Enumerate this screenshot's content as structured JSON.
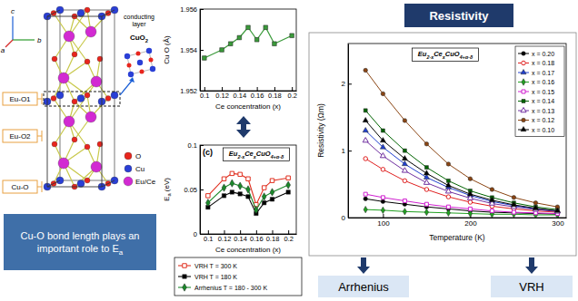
{
  "chart_data": [
    {
      "type": "line",
      "x_label": "Ce concentration (x)",
      "y_label": "Cu O (Å)",
      "x": [
        0.1,
        0.12,
        0.13,
        0.14,
        0.15,
        0.16,
        0.17,
        0.18,
        0.2
      ],
      "values": [
        1.9536,
        1.954,
        1.9543,
        1.9546,
        1.9551,
        1.9545,
        1.9551,
        1.9543,
        1.9547
      ],
      "errors": [
        0.0001,
        0.0001,
        0.0001,
        0.0001,
        0.0001,
        0.0001,
        0.0001,
        0.0001,
        0.0001
      ],
      "color": "#3a9a3a",
      "marker": "square",
      "xlim": [
        0.095,
        0.205
      ],
      "ylim": [
        1.952,
        1.956
      ],
      "xticks": [
        0.1,
        0.12,
        0.14,
        0.16,
        0.18,
        0.2
      ],
      "yticks": [
        1.952,
        1.954,
        1.956
      ]
    },
    {
      "type": "line",
      "panel_label": "(c)",
      "title": "Eu2-xCexCuO4+α-δ",
      "x_label": "Ce concentration (x)",
      "y_label": "Ea (eV)",
      "x": [
        0.1,
        0.12,
        0.13,
        0.14,
        0.15,
        0.16,
        0.17,
        0.18,
        0.2
      ],
      "series": [
        {
          "name": "VRH T = 300 K",
          "color": "#e03020",
          "marker": "open-square",
          "values": [
            0.043,
            0.062,
            0.068,
            0.067,
            0.062,
            0.033,
            0.052,
            0.06,
            0.063
          ]
        },
        {
          "name": "VRH T = 180 K",
          "color": "#000000",
          "marker": "square",
          "values": [
            0.03,
            0.043,
            0.047,
            0.045,
            0.042,
            0.023,
            0.035,
            0.039,
            0.047
          ]
        },
        {
          "name": "Arrhenius T = 180 - 300 K",
          "color": "#1a8a2a",
          "marker": "diamond",
          "values": [
            0.035,
            0.052,
            0.057,
            0.054,
            0.05,
            0.027,
            0.042,
            0.047,
            0.055
          ]
        }
      ],
      "legend": "bottom",
      "xlim": [
        0.09,
        0.21
      ],
      "ylim": [
        0,
        0.1
      ],
      "xticks": [
        0.1,
        0.12,
        0.14,
        0.16,
        0.18,
        0.2
      ],
      "yticks": [
        0,
        0.05,
        0.1
      ]
    },
    {
      "type": "line",
      "title": "Eu2-xCexCuO4+α-δ",
      "x_label": "Temperature (K)",
      "y_label": "Resistivity (Ωm)",
      "x": [
        80,
        100,
        125,
        150,
        175,
        200,
        225,
        250,
        275,
        300
      ],
      "series": [
        {
          "name": "x = 0.20",
          "color": "#000000",
          "marker": "circle",
          "values": [
            0.28,
            0.24,
            0.2,
            0.16,
            0.13,
            0.1,
            0.08,
            0.07,
            0.06,
            0.05
          ]
        },
        {
          "name": "x = 0.18",
          "color": "#e02020",
          "marker": "open-circle",
          "values": [
            0.88,
            0.72,
            0.55,
            0.42,
            0.31,
            0.23,
            0.17,
            0.13,
            0.1,
            0.08
          ]
        },
        {
          "name": "x = 0.17",
          "color": "#2040d0",
          "marker": "triangle",
          "values": [
            1.3,
            1.05,
            0.8,
            0.6,
            0.45,
            0.33,
            0.24,
            0.18,
            0.13,
            0.1
          ]
        },
        {
          "name": "x = 0.16",
          "color": "#20a020",
          "marker": "diamond",
          "values": [
            0.12,
            0.11,
            0.09,
            0.08,
            0.07,
            0.06,
            0.05,
            0.05,
            0.04,
            0.04
          ]
        },
        {
          "name": "x = 0.15",
          "color": "#d020d0",
          "marker": "open-square",
          "values": [
            0.35,
            0.3,
            0.25,
            0.2,
            0.16,
            0.13,
            0.1,
            0.08,
            0.07,
            0.06
          ]
        },
        {
          "name": "x = 0.14",
          "color": "#006400",
          "marker": "square",
          "values": [
            1.6,
            1.3,
            1.0,
            0.75,
            0.55,
            0.4,
            0.3,
            0.22,
            0.16,
            0.12
          ]
        },
        {
          "name": "x = 0.13",
          "color": "#7030a0",
          "marker": "open-triangle",
          "values": [
            1.15,
            0.92,
            0.7,
            0.52,
            0.39,
            0.29,
            0.21,
            0.16,
            0.12,
            0.09
          ]
        },
        {
          "name": "x = 0.12",
          "color": "#8b4513",
          "marker": "circle",
          "values": [
            2.2,
            1.85,
            1.45,
            1.1,
            0.8,
            0.58,
            0.42,
            0.3,
            0.22,
            0.16
          ]
        },
        {
          "name": "x = 0.10",
          "color": "#000000",
          "marker": "triangle",
          "values": [
            1.45,
            1.15,
            0.88,
            0.66,
            0.48,
            0.35,
            0.26,
            0.19,
            0.14,
            0.1
          ]
        }
      ],
      "legend": "top-right",
      "xlim": [
        60,
        310
      ],
      "ylim": [
        0,
        2.6
      ],
      "xticks": [
        100,
        200,
        300
      ],
      "yticks": [
        0,
        1,
        2
      ]
    }
  ],
  "diagram": {
    "axes": [
      "c",
      "b",
      "a"
    ],
    "structure_labels": [
      "Eu-O1",
      "Eu-O2",
      "Cu-O"
    ],
    "conducting_layer": {
      "label": "conducting layer",
      "formula": "CuO2"
    },
    "atoms": [
      {
        "name": "O",
        "color": "#e8251d"
      },
      {
        "name": "Cu",
        "color": "#2a3fd6"
      },
      {
        "name": "Eu/Ce",
        "color": "#d22ad2"
      }
    ],
    "callout": "Cu-O bond length plays an important role to Ea",
    "header": "Resistivity",
    "methods": [
      "Arrhenius",
      "VRH"
    ]
  }
}
